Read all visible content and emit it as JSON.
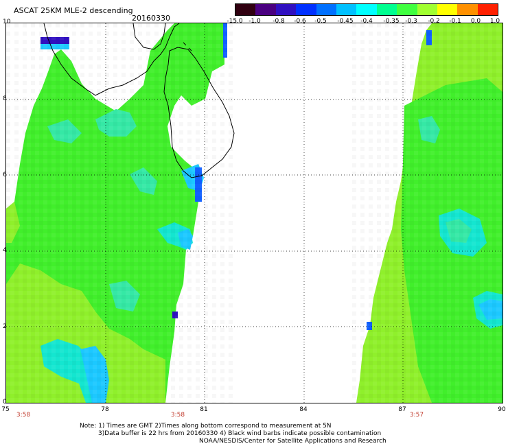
{
  "header": {
    "title": "ASCAT 25KM MLE-2 descending",
    "date": "20160330"
  },
  "colorbar": {
    "labels": [
      "-15.0",
      "-1.0",
      "-0.8",
      "-0.6",
      "-0.5",
      "-0.45",
      "-0.4",
      "-0.35",
      "-0.3",
      "-0.2",
      "-0.1",
      "0.0",
      "1.0"
    ],
    "colors": [
      "#300010",
      "#4a0080",
      "#3010c0",
      "#0030ff",
      "#0070ff",
      "#00c0ff",
      "#00ffff",
      "#00ff90",
      "#40ff40",
      "#a0ff30",
      "#ffff00",
      "#ff9000",
      "#ff2000"
    ]
  },
  "axes": {
    "x_ticks": [
      "75",
      "78",
      "81",
      "84",
      "87",
      "90"
    ],
    "y_ticks": [
      "0",
      "2",
      "4",
      "6",
      "8",
      "10"
    ]
  },
  "times": [
    "3:58",
    "3:58",
    "3:57"
  ],
  "notes": [
    "Note: 1) Times are GMT 2)Times along bottom correspond to measurement at 5N",
    "3)Data buffer is 22 hrs from 20160330 4) Black wind barbs indicate possible contamination",
    "NOAA/NESDIS/Center for Satellite Applications and Research"
  ]
}
